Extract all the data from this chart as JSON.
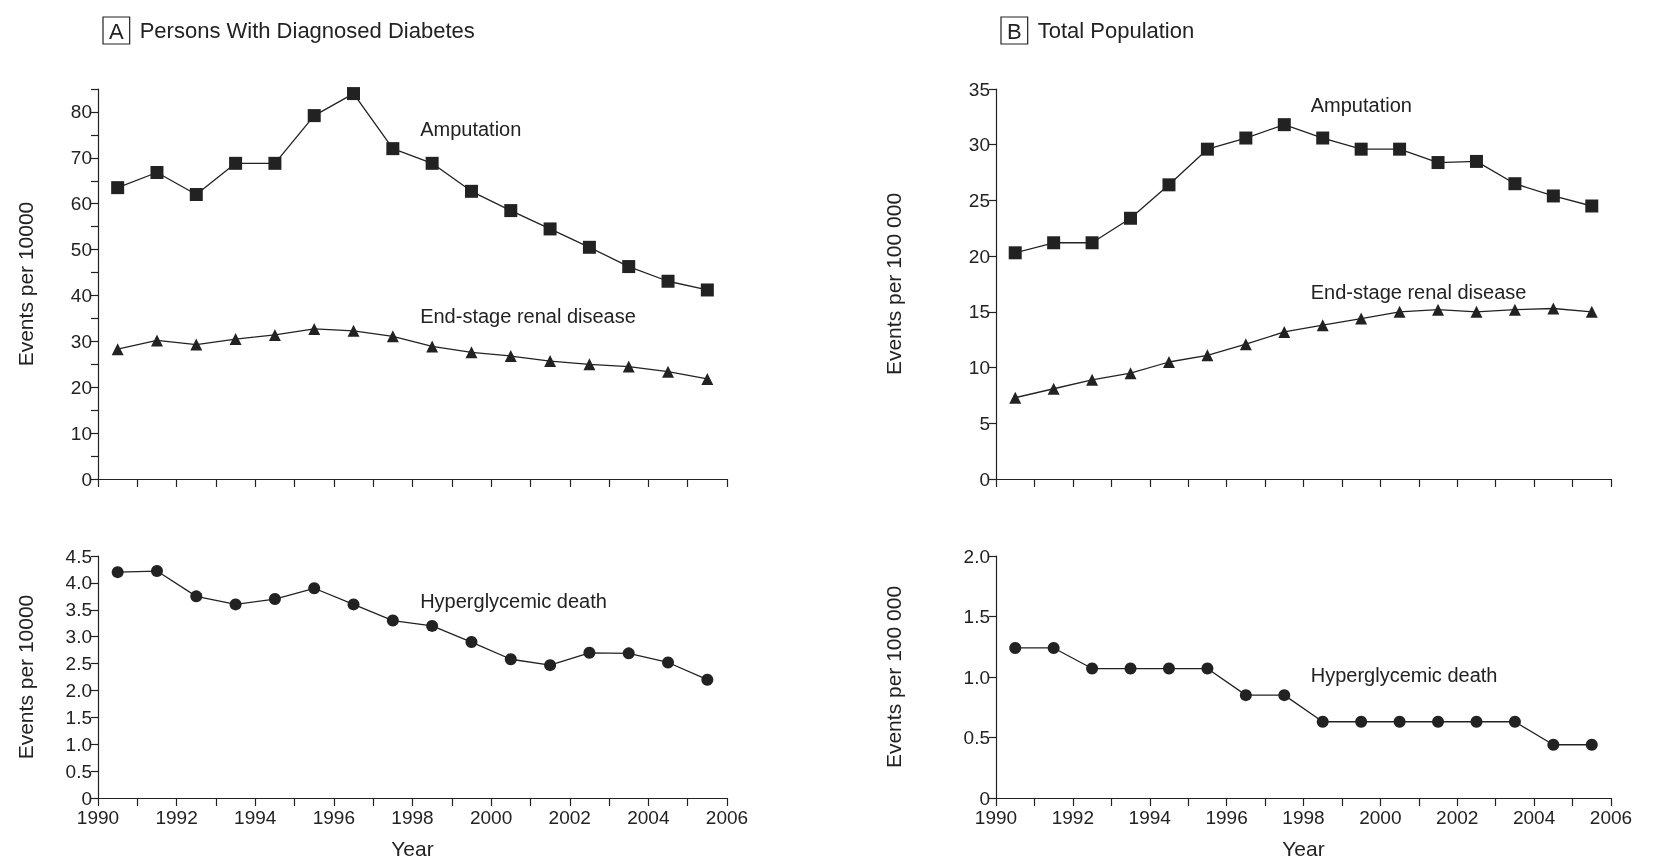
{
  "chart_data": [
    {
      "type": "line",
      "title": "A",
      "subtitle": "Persons With Diagnosed Diabetes",
      "ylabel": "Events per 10000",
      "x": [
        1990.5,
        1991.5,
        1992.5,
        1993.5,
        1994.5,
        1995.5,
        1996.5,
        1997.5,
        1998.5,
        1999.5,
        2000.5,
        2001.5,
        2002.5,
        2003.5,
        2004.5,
        2005.5
      ],
      "series": [
        {
          "name": "Amputation",
          "color": "#222222",
          "marker": "square",
          "values": [
            63.5,
            66.8,
            62,
            68.8,
            68.8,
            79.2,
            84,
            72,
            68.8,
            62.7,
            58.5,
            54.5,
            50.5,
            46.3,
            43.1,
            41.2
          ]
        },
        {
          "name": "End-stage renal disease",
          "color": "#222222",
          "marker": "triangle",
          "values": [
            28.3,
            30.2,
            29.3,
            30.5,
            31.4,
            32.7,
            32.3,
            31.1,
            28.9,
            27.6,
            26.8,
            25.7,
            25,
            24.5,
            23.4,
            21.8
          ]
        }
      ],
      "xlim": [
        1990,
        2006
      ],
      "xticks": [
        {
          "value": 1990,
          "label": null
        },
        {
          "value": 1991,
          "label": null
        },
        {
          "value": 1992,
          "label": null
        },
        {
          "value": 1993,
          "label": null
        },
        {
          "value": 1994,
          "label": null
        },
        {
          "value": 1995,
          "label": null
        },
        {
          "value": 1996,
          "label": null
        },
        {
          "value": 1997,
          "label": null
        },
        {
          "value": 1998,
          "label": null
        },
        {
          "value": 1999,
          "label": null
        },
        {
          "value": 2000,
          "label": null
        },
        {
          "value": 2001,
          "label": null
        },
        {
          "value": 2002,
          "label": null
        },
        {
          "value": 2003,
          "label": null
        },
        {
          "value": 2004,
          "label": null
        },
        {
          "value": 2005,
          "label": null
        },
        {
          "value": 2006,
          "label": null
        }
      ],
      "ylim": [
        0,
        85
      ],
      "yticks": [
        0,
        {
          "value": 5,
          "label": null
        },
        10,
        {
          "value": 15,
          "label": null
        },
        20,
        {
          "value": 25,
          "label": null
        },
        30,
        {
          "value": 35,
          "label": null
        },
        40,
        {
          "value": 45,
          "label": null
        },
        50,
        {
          "value": 55,
          "label": null
        },
        60,
        {
          "value": 65,
          "label": null
        },
        70,
        {
          "value": 75,
          "label": null
        },
        80,
        {
          "value": 85,
          "label": null
        }
      ],
      "tick_labels": "y"
    },
    {
      "type": "line",
      "ylabel": "Events per 10000",
      "xlabel": "Year",
      "x": [
        1990.5,
        1991.5,
        1992.5,
        1993.5,
        1994.5,
        1995.5,
        1996.5,
        1997.5,
        1998.5,
        1999.5,
        2000.5,
        2001.5,
        2002.5,
        2003.5,
        2004.5,
        2005.5
      ],
      "series": [
        {
          "name": "Hyperglycemic death",
          "color": "#222222",
          "marker": "circle",
          "values": [
            4.2,
            4.22,
            3.75,
            3.6,
            3.7,
            3.9,
            3.6,
            3.3,
            3.2,
            2.9,
            2.58,
            2.47,
            2.7,
            2.69,
            2.52,
            2.2
          ]
        }
      ],
      "xlim": [
        1990,
        2006
      ],
      "xticks": [
        1990,
        {
          "value": 1991,
          "label": null
        },
        1992,
        {
          "value": 1993,
          "label": null
        },
        1994,
        {
          "value": 1995,
          "label": null
        },
        1996,
        {
          "value": 1997,
          "label": null
        },
        1998,
        {
          "value": 1999,
          "label": null
        },
        2000,
        {
          "value": 2001,
          "label": null
        },
        2002,
        {
          "value": 2003,
          "label": null
        },
        2004,
        {
          "value": 2005,
          "label": null
        },
        2006
      ],
      "ylim": [
        0,
        4.5
      ],
      "yticks": [
        0,
        0.5,
        {
          "value": 1,
          "label": "1.0"
        },
        1.5,
        {
          "value": 2,
          "label": "2.0"
        },
        2.5,
        {
          "value": 3,
          "label": "3.0"
        },
        3.5,
        {
          "value": 4,
          "label": "4.0"
        },
        4.5
      ]
    },
    {
      "type": "line",
      "title": "B",
      "subtitle": "Total Population",
      "ylabel": "Events per 100 000",
      "x": [
        1990.5,
        1991.5,
        1992.5,
        1993.5,
        1994.5,
        1995.5,
        1996.5,
        1997.5,
        1998.5,
        1999.5,
        2000.5,
        2001.5,
        2002.5,
        2003.5,
        2004.5,
        2005.5
      ],
      "series": [
        {
          "name": "Amputation",
          "color": "#222222",
          "marker": "square",
          "values": [
            20.3,
            21.2,
            21.2,
            23.4,
            26.4,
            29.6,
            30.6,
            31.8,
            30.6,
            29.6,
            29.6,
            28.4,
            28.5,
            26.5,
            25.4,
            24.5
          ]
        },
        {
          "name": "End-stage renal disease",
          "color": "#222222",
          "marker": "triangle",
          "values": [
            7.3,
            8.1,
            8.9,
            9.5,
            10.5,
            11.1,
            12.1,
            13.2,
            13.8,
            14.4,
            15,
            15.2,
            15,
            15.2,
            15.3,
            15
          ]
        }
      ],
      "xlim": [
        1990,
        2006
      ],
      "xticks": [
        {
          "value": 1990,
          "label": null
        },
        {
          "value": 1991,
          "label": null
        },
        {
          "value": 1992,
          "label": null
        },
        {
          "value": 1993,
          "label": null
        },
        {
          "value": 1994,
          "label": null
        },
        {
          "value": 1995,
          "label": null
        },
        {
          "value": 1996,
          "label": null
        },
        {
          "value": 1997,
          "label": null
        },
        {
          "value": 1998,
          "label": null
        },
        {
          "value": 1999,
          "label": null
        },
        {
          "value": 2000,
          "label": null
        },
        {
          "value": 2001,
          "label": null
        },
        {
          "value": 2002,
          "label": null
        },
        {
          "value": 2003,
          "label": null
        },
        {
          "value": 2004,
          "label": null
        },
        {
          "value": 2005,
          "label": null
        },
        {
          "value": 2006,
          "label": null
        }
      ],
      "ylim": [
        0,
        35
      ],
      "yticks": [
        0,
        5,
        10,
        15,
        20,
        25,
        30,
        35
      ],
      "tick_labels": "y"
    },
    {
      "type": "line",
      "ylabel": "Events per 100 000",
      "xlabel": "Year",
      "x": [
        1990.5,
        1991.5,
        1992.5,
        1993.5,
        1994.5,
        1995.5,
        1996.5,
        1997.5,
        1998.5,
        1999.5,
        2000.5,
        2001.5,
        2002.5,
        2003.5,
        2004.5,
        2005.5
      ],
      "series": [
        {
          "name": "Hyperglycemic death",
          "color": "#222222",
          "marker": "circle",
          "values": [
            1.24,
            1.24,
            1.07,
            1.07,
            1.07,
            1.07,
            0.85,
            0.85,
            0.63,
            0.63,
            0.63,
            0.63,
            0.63,
            0.63,
            0.44,
            0.44
          ]
        }
      ],
      "xlim": [
        1990,
        2006
      ],
      "xticks": [
        1990,
        {
          "value": 1991,
          "label": null
        },
        1992,
        {
          "value": 1993,
          "label": null
        },
        1994,
        {
          "value": 1995,
          "label": null
        },
        1996,
        {
          "value": 1997,
          "label": null
        },
        1998,
        {
          "value": 1999,
          "label": null
        },
        2000,
        {
          "value": 2001,
          "label": null
        },
        2002,
        {
          "value": 2003,
          "label": null
        },
        2004,
        {
          "value": 2005,
          "label": null
        },
        2006
      ],
      "ylim": [
        0,
        2
      ],
      "yticks": [
        0,
        0.5,
        {
          "value": 1,
          "label": "1.0"
        },
        1.5,
        {
          "value": 2,
          "label": "2.0"
        }
      ]
    }
  ]
}
